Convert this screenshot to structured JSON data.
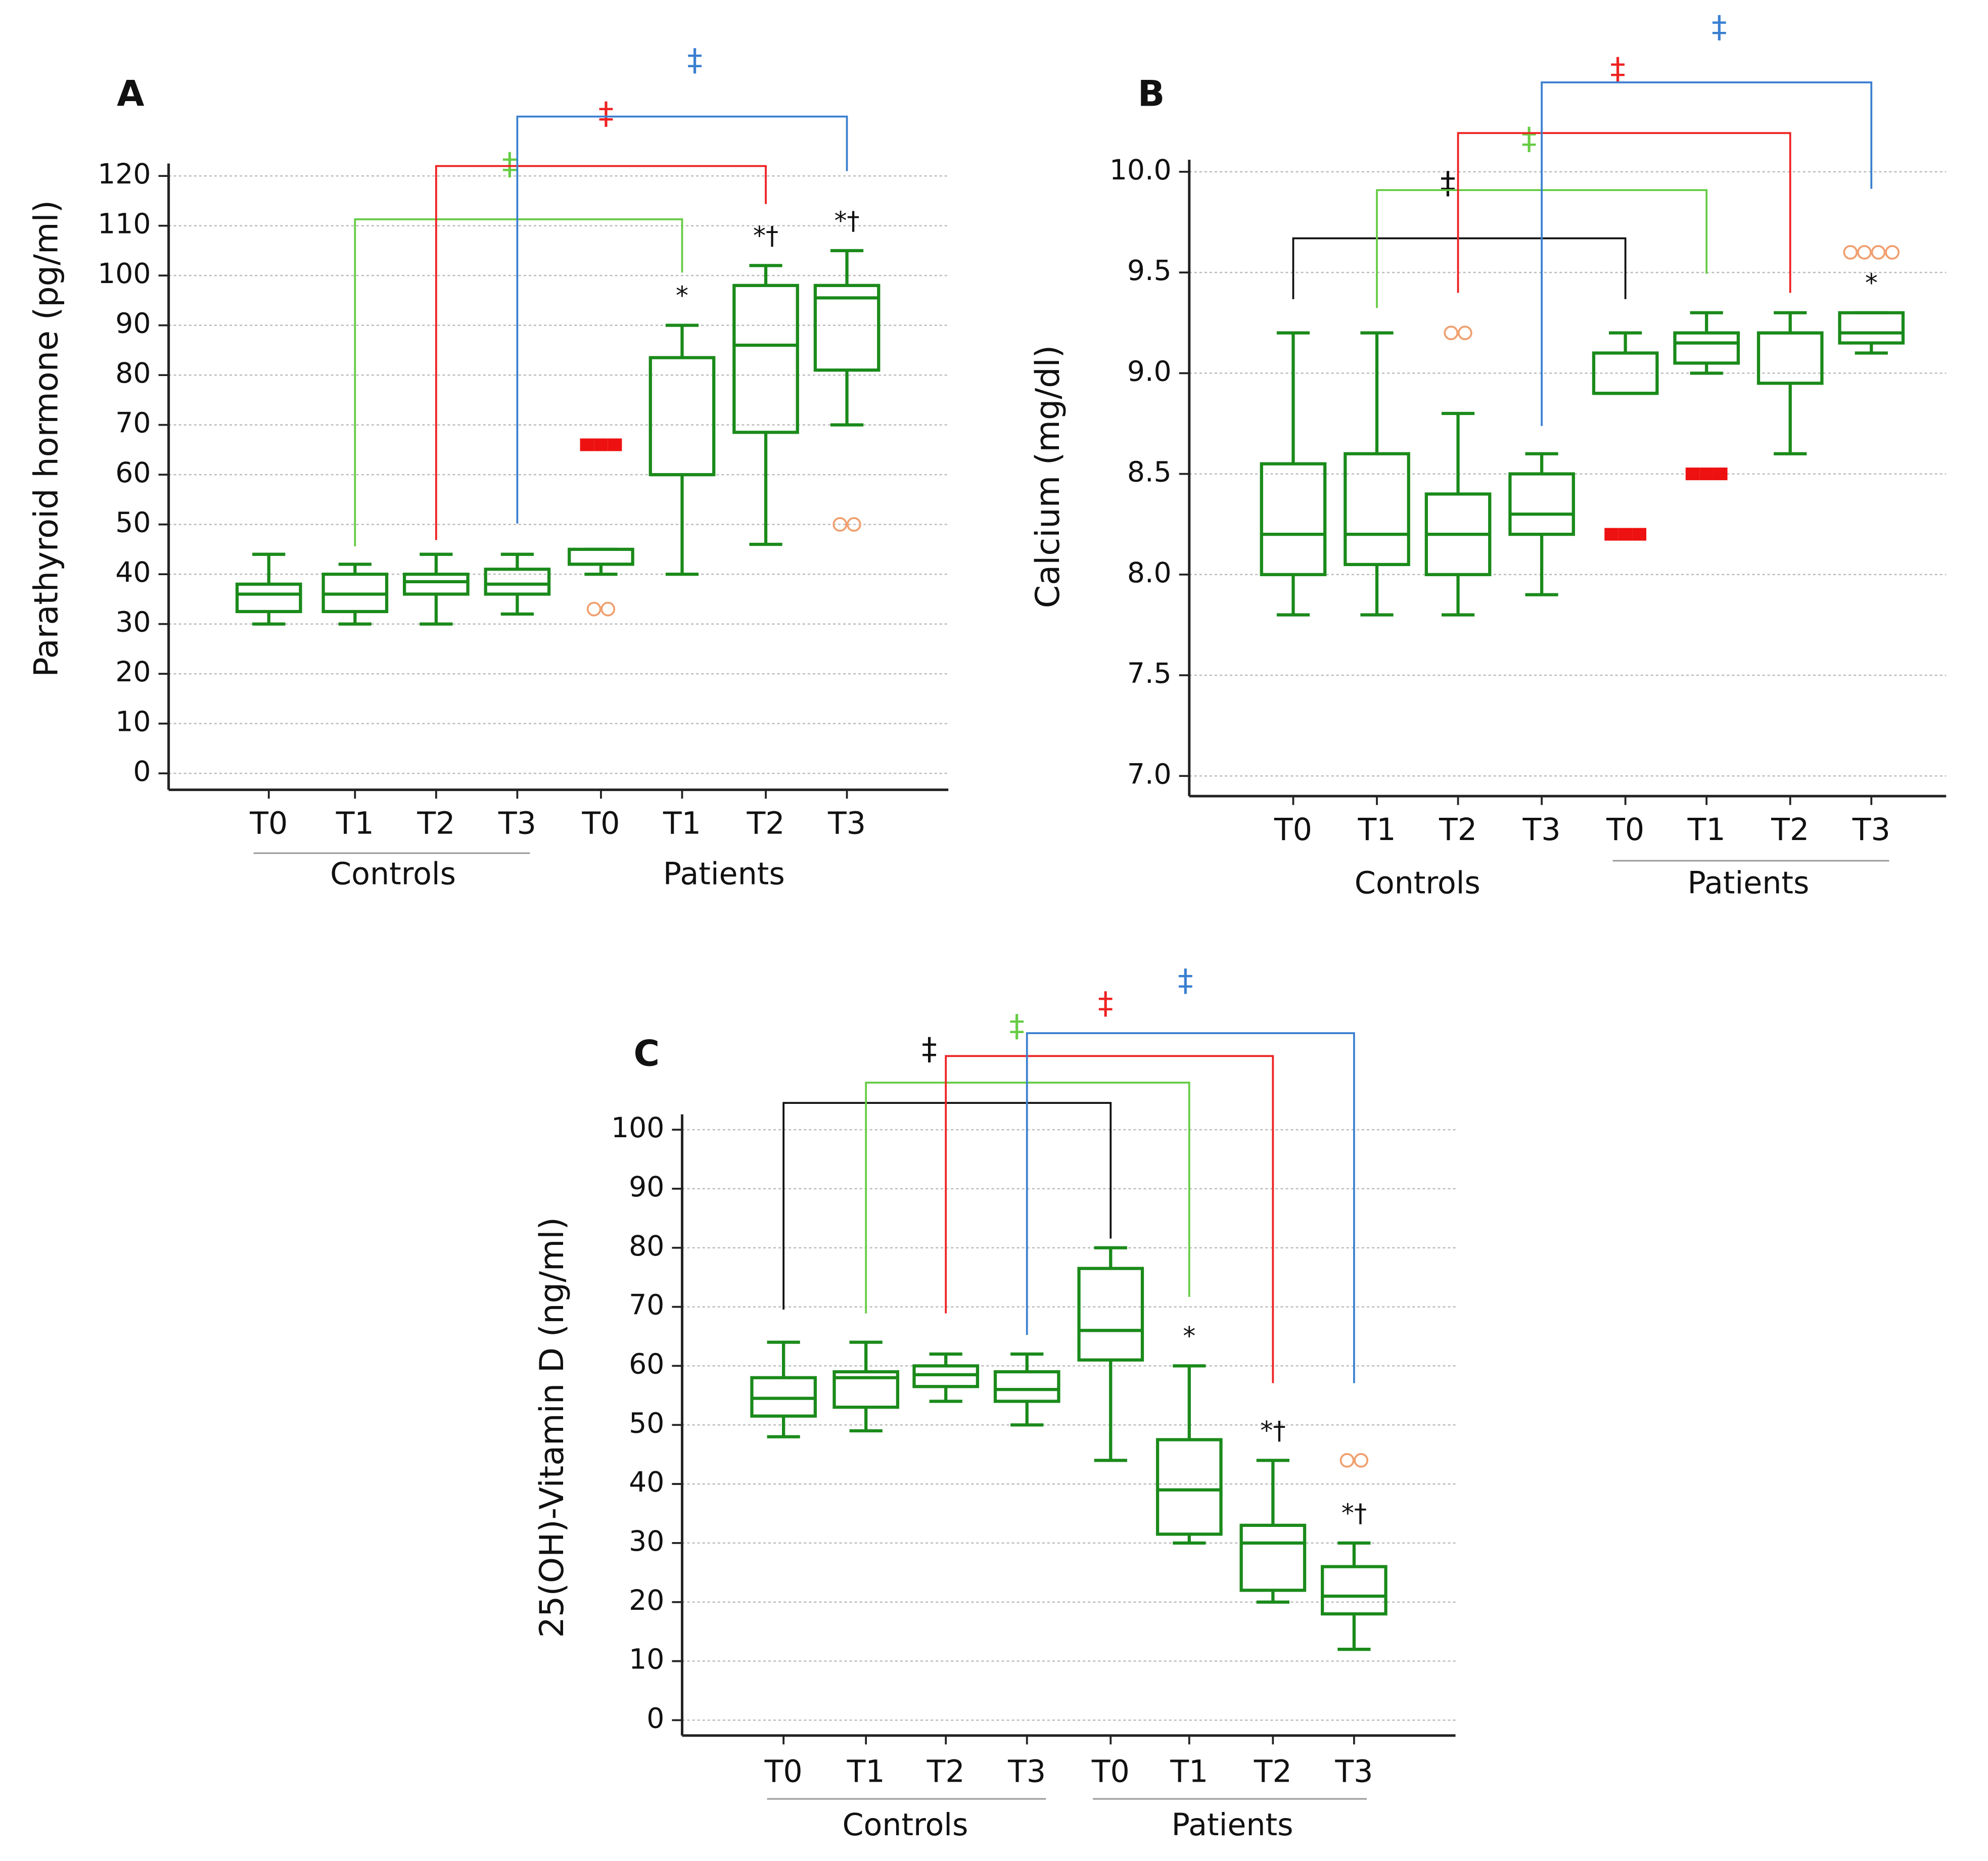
{
  "chart_data": [
    {
      "type": "box",
      "title": "A",
      "y_label": "Parathyroid hormone (pg/ml)",
      "categories": [
        "T0",
        "T1",
        "T2",
        "T3",
        "T0",
        "T1",
        "T2",
        "T3"
      ],
      "groups": [
        "Controls",
        "Patients"
      ],
      "color": "#1a8a1a",
      "outlier_color": "#f0a070",
      "extreme_color": "#ee1111",
      "ylim": [
        -3.3,
        122.5
      ],
      "yticks": [
        0,
        10,
        20,
        30,
        40,
        50,
        60,
        70,
        80,
        90,
        100,
        110,
        120
      ],
      "grid": true,
      "boxes": [
        {
          "low": 30,
          "q1": 32.5,
          "median": 36,
          "q3": 38,
          "high": 44
        },
        {
          "low": 30,
          "q1": 32.5,
          "median": 36,
          "q3": 40,
          "high": 42
        },
        {
          "low": 30,
          "q1": 36,
          "median": 38.5,
          "q3": 40,
          "high": 44
        },
        {
          "low": 32,
          "q1": 36,
          "median": 38,
          "q3": 41,
          "high": 44
        },
        {
          "low": 40,
          "q1": 42,
          "median": 42,
          "q3": 45,
          "high": 45,
          "outliers": [
            33,
            33
          ],
          "extremes": [
            66,
            66,
            66
          ]
        },
        {
          "low": 40,
          "q1": 60,
          "median": 60,
          "q3": 83.5,
          "high": 90,
          "annotation": "*"
        },
        {
          "low": 46,
          "q1": 68.5,
          "median": 86,
          "q3": 98,
          "high": 102,
          "annotation": "*†"
        },
        {
          "low": 70,
          "q1": 81,
          "median": 95.5,
          "q3": 98,
          "high": 105,
          "outliers": [
            50,
            50
          ],
          "annotation": "*†"
        }
      ],
      "comparisons": [
        {
          "label": "‡",
          "color": "#66cc44",
          "from": 1,
          "to": 5
        },
        {
          "label": "‡",
          "color": "#ee2222",
          "from": 2,
          "to": 6
        },
        {
          "label": "‡",
          "color": "#3a7fd0",
          "from": 3,
          "to": 7
        }
      ]
    },
    {
      "type": "box",
      "title": "B",
      "y_label": "Calcium (mg/dl)",
      "categories": [
        "T0",
        "T1",
        "T2",
        "T3",
        "T0",
        "T1",
        "T2",
        "T3"
      ],
      "groups": [
        "Controls",
        "Patients"
      ],
      "color": "#1a8a1a",
      "outlier_color": "#f0a070",
      "extreme_color": "#ee1111",
      "ylim": [
        6.9,
        10.06
      ],
      "yticks": [
        {
          "value": 7,
          "label": "7.0"
        },
        7.5,
        {
          "value": 8,
          "label": "8.0"
        },
        8.5,
        {
          "value": 9,
          "label": "9.0"
        },
        9.5,
        {
          "value": 10,
          "label": "10.0"
        }
      ],
      "grid": true,
      "boxes": [
        {
          "low": 7.8,
          "q1": 8.0,
          "median": 8.2,
          "q3": 8.55,
          "high": 9.2
        },
        {
          "low": 7.8,
          "q1": 8.05,
          "median": 8.2,
          "q3": 8.6,
          "high": 9.2
        },
        {
          "low": 7.8,
          "q1": 8.0,
          "median": 8.2,
          "q3": 8.4,
          "high": 8.8,
          "outliers": [
            9.2,
            9.2
          ]
        },
        {
          "low": 7.9,
          "q1": 8.2,
          "median": 8.3,
          "q3": 8.5,
          "high": 8.6
        },
        {
          "low": 8.9,
          "q1": 8.9,
          "median": 8.9,
          "q3": 9.1,
          "high": 9.2,
          "extremes": [
            8.2,
            8.2,
            8.2
          ]
        },
        {
          "low": 9.0,
          "q1": 9.05,
          "median": 9.15,
          "q3": 9.2,
          "high": 9.3,
          "extremes": [
            8.5,
            8.5,
            8.5
          ]
        },
        {
          "low": 8.6,
          "q1": 8.95,
          "median": 9.2,
          "q3": 9.2,
          "high": 9.3
        },
        {
          "low": 9.1,
          "q1": 9.15,
          "median": 9.2,
          "q3": 9.3,
          "high": 9.3,
          "outliers": [
            9.6,
            9.6,
            9.6,
            9.6
          ],
          "annotation": "*"
        }
      ],
      "comparisons": [
        {
          "label": "‡",
          "color": "#111111",
          "from": 0,
          "to": 4
        },
        {
          "label": "‡",
          "color": "#66cc44",
          "from": 1,
          "to": 5
        },
        {
          "label": "‡",
          "color": "#ee2222",
          "from": 2,
          "to": 6
        },
        {
          "label": "‡",
          "color": "#3a7fd0",
          "from": 3,
          "to": 7
        }
      ]
    },
    {
      "type": "box",
      "title": "C",
      "y_label": "25(OH)-Vitamin D (ng/ml)",
      "categories": [
        "T0",
        "T1",
        "T2",
        "T3",
        "T0",
        "T1",
        "T2",
        "T3"
      ],
      "groups": [
        "Controls",
        "Patients"
      ],
      "color": "#1a8a1a",
      "outlier_color": "#f0a070",
      "extreme_color": "#ee1111",
      "ylim": [
        -2.6,
        102.6
      ],
      "yticks": [
        0,
        10,
        20,
        30,
        40,
        50,
        60,
        70,
        80,
        90,
        100
      ],
      "grid": true,
      "boxes": [
        {
          "low": 48,
          "q1": 51.5,
          "median": 54.5,
          "q3": 58,
          "high": 64
        },
        {
          "low": 49,
          "q1": 53,
          "median": 58,
          "q3": 59,
          "high": 64
        },
        {
          "low": 54,
          "q1": 56.5,
          "median": 58.5,
          "q3": 60,
          "high": 62
        },
        {
          "low": 50,
          "q1": 54,
          "median": 56,
          "q3": 59,
          "high": 62
        },
        {
          "low": 44,
          "q1": 61,
          "median": 66,
          "q3": 76.5,
          "high": 80
        },
        {
          "low": 30,
          "q1": 31.5,
          "median": 39,
          "q3": 47.5,
          "high": 60,
          "annotation": "*"
        },
        {
          "low": 20,
          "q1": 22,
          "median": 30,
          "q3": 33,
          "high": 44,
          "annotation": "*†"
        },
        {
          "low": 12,
          "q1": 18,
          "median": 21,
          "q3": 26,
          "high": 30,
          "outliers": [
            44,
            44
          ],
          "annotation": "*†"
        }
      ],
      "comparisons": [
        {
          "label": "‡",
          "color": "#111111",
          "from": 0,
          "to": 4
        },
        {
          "label": "‡",
          "color": "#66cc44",
          "from": 1,
          "to": 5
        },
        {
          "label": "‡",
          "color": "#ee2222",
          "from": 2,
          "to": 6
        },
        {
          "label": "‡",
          "color": "#3a7fd0",
          "from": 3,
          "to": 7
        }
      ]
    }
  ]
}
